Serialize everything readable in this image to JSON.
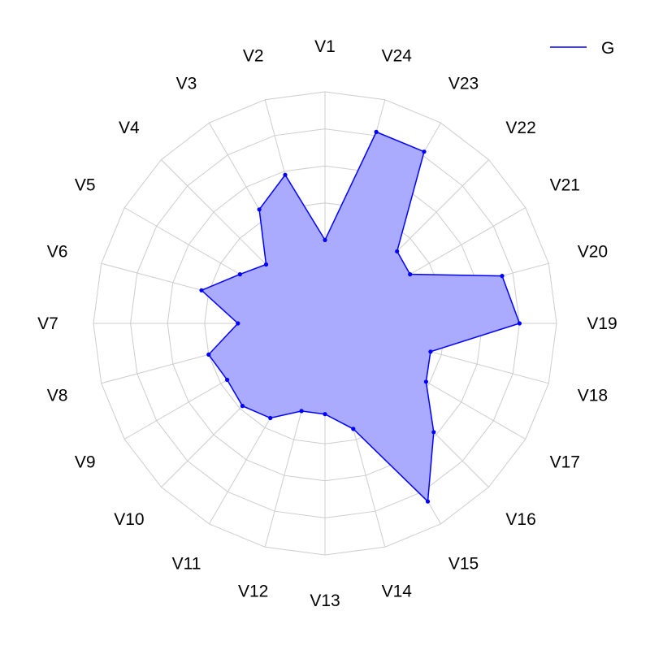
{
  "chart_data": {
    "type": "radar",
    "title": "",
    "axes": [
      "V1",
      "V2",
      "V3",
      "V4",
      "V5",
      "V6",
      "V7",
      "V8",
      "V9",
      "V10",
      "V11",
      "V12",
      "V13",
      "V14",
      "V15",
      "V16",
      "V17",
      "V18",
      "V19",
      "V20",
      "V21",
      "V22",
      "V23",
      "V24"
    ],
    "rlim": [
      0,
      5
    ],
    "grid_levels": 5,
    "grid": true,
    "legend_position": "top-right",
    "series": [
      {
        "name": "G",
        "color": "#0000ff",
        "fill": "#aaaaff",
        "values": [
          1.0,
          2.9,
          2.3,
          1.0,
          1.4,
          2.2,
          1.1,
          2.0,
          1.8,
          1.9,
          1.7,
          1.2,
          1.2,
          1.7,
          4.3,
          2.9,
          1.9,
          1.7,
          4.0,
          3.7,
          1.4,
          1.5,
          4.1,
          4.1
        ]
      }
    ]
  }
}
